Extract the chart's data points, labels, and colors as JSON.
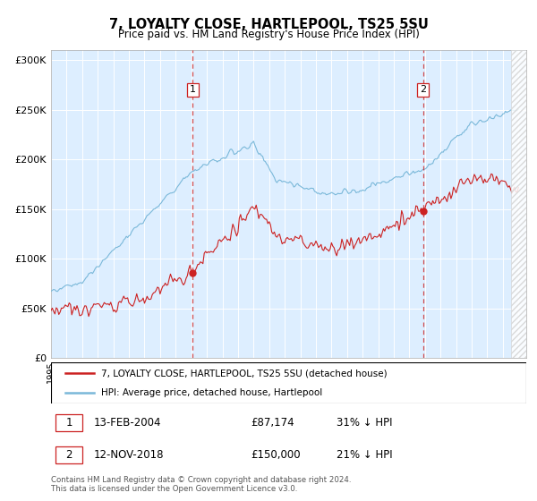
{
  "title": "7, LOYALTY CLOSE, HARTLEPOOL, TS25 5SU",
  "subtitle": "Price paid vs. HM Land Registry's House Price Index (HPI)",
  "ylim": [
    0,
    310000
  ],
  "yticks": [
    0,
    50000,
    100000,
    150000,
    200000,
    250000,
    300000
  ],
  "ytick_labels": [
    "£0",
    "£50K",
    "£100K",
    "£150K",
    "£200K",
    "£250K",
    "£300K"
  ],
  "hpi_color": "#7ab8d9",
  "price_color": "#cc2222",
  "bg_color": "#ddeeff",
  "marker1_date": 2004.1,
  "marker1_price": 87174,
  "marker2_date": 2018.87,
  "marker2_price": 150000,
  "legend_label_red": "7, LOYALTY CLOSE, HARTLEPOOL, TS25 5SU (detached house)",
  "legend_label_blue": "HPI: Average price, detached house, Hartlepool",
  "table_row1": [
    "1",
    "13-FEB-2004",
    "£87,174",
    "31% ↓ HPI"
  ],
  "table_row2": [
    "2",
    "12-NOV-2018",
    "£150,000",
    "21% ↓ HPI"
  ],
  "footer": "Contains HM Land Registry data © Crown copyright and database right 2024.\nThis data is licensed under the Open Government Licence v3.0."
}
